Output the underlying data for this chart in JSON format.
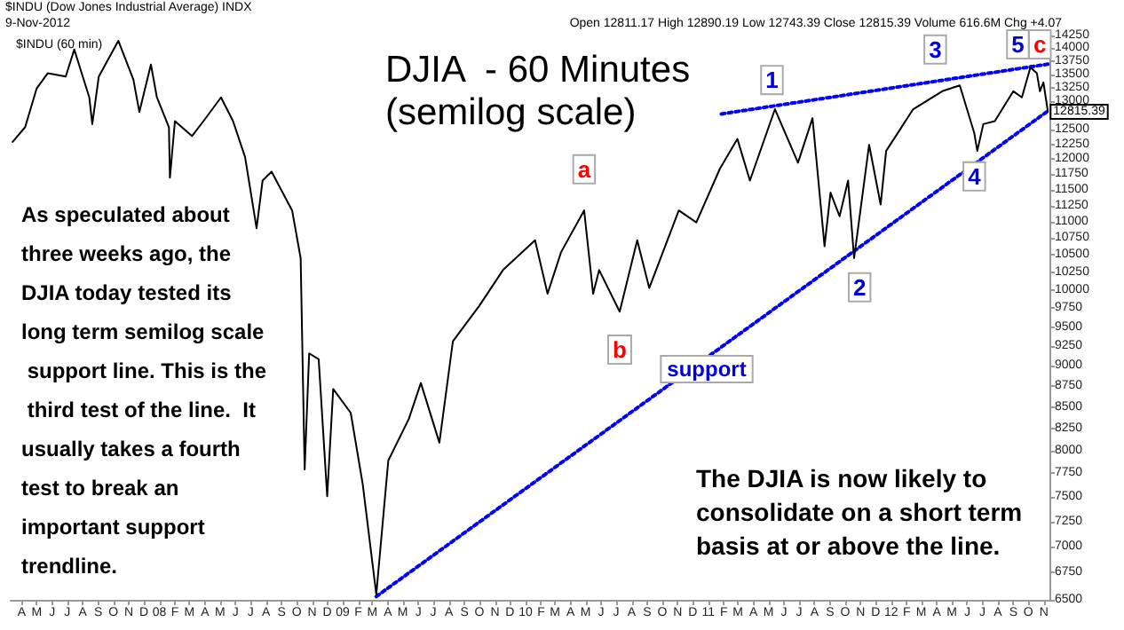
{
  "chart_data": {
    "type": "line",
    "title": "DJIA  - 60 Minutes",
    "subtitle": "(semilog scale)",
    "log": true,
    "annotations": [
      "$INDU (Dow Jones Industrial Average) INDX",
      "9-Nov-2012",
      "Open 12811.17 High 12890.19 Low 12743.39 Close 12815.39 Volume 616.6M Chg +4.07",
      "$INDU (60 min)",
      "As speculated about three weeks ago, the DJIA today tested its long term semilog scale support line. This is the third test of the line.  It usually takes a fourth test to break an important support trendline.",
      "The DJIA is now likely to consolidate on a short term basis at or above the line.",
      {
        "text": "a",
        "x": "2010-04-28",
        "y": 11830
      },
      {
        "text": "b",
        "x": "2010-07-08",
        "y": 9205
      },
      {
        "text": "1",
        "x": "2011-05-08",
        "y": 13395
      },
      {
        "text": "2",
        "x": "2011-10-30",
        "y": 10040
      },
      {
        "text": "3",
        "x": "2012-03-29",
        "y": 13975
      },
      {
        "text": "4",
        "x": "2012-06-15",
        "y": 11713
      },
      {
        "text": "5",
        "x": "2012-09-10",
        "y": 14075
      },
      {
        "text": "c",
        "x": "2012-10-24",
        "y": 14075
      },
      "support"
    ],
    "xlim": [
      "2007-03-10",
      "2012-11-12"
    ],
    "ylim": [
      6500,
      14250
    ],
    "xticks": [
      {
        "value": "2007-04",
        "label": "A"
      },
      {
        "value": "2007-05",
        "label": "M"
      },
      {
        "value": "2007-06",
        "label": "J"
      },
      {
        "value": "2007-07",
        "label": "J"
      },
      {
        "value": "2007-08",
        "label": "A"
      },
      {
        "value": "2007-09",
        "label": "S"
      },
      {
        "value": "2007-10",
        "label": "O"
      },
      {
        "value": "2007-11",
        "label": "N"
      },
      {
        "value": "2007-12",
        "label": "D"
      },
      {
        "value": "2008-01",
        "label": "08"
      },
      {
        "value": "2008-02",
        "label": "F"
      },
      {
        "value": "2008-03",
        "label": "M"
      },
      {
        "value": "2008-04",
        "label": "A"
      },
      {
        "value": "2008-05",
        "label": "M"
      },
      {
        "value": "2008-06",
        "label": "J"
      },
      {
        "value": "2008-07",
        "label": "J"
      },
      {
        "value": "2008-08",
        "label": "A"
      },
      {
        "value": "2008-09",
        "label": "S"
      },
      {
        "value": "2008-10",
        "label": "O"
      },
      {
        "value": "2008-11",
        "label": "N"
      },
      {
        "value": "2008-12",
        "label": "D"
      },
      {
        "value": "2009-01",
        "label": "09"
      },
      {
        "value": "2009-02",
        "label": "F"
      },
      {
        "value": "2009-03",
        "label": "M"
      },
      {
        "value": "2009-04",
        "label": "A"
      },
      {
        "value": "2009-05",
        "label": "M"
      },
      {
        "value": "2009-06",
        "label": "J"
      },
      {
        "value": "2009-07",
        "label": "J"
      },
      {
        "value": "2009-08",
        "label": "A"
      },
      {
        "value": "2009-09",
        "label": "S"
      },
      {
        "value": "2009-10",
        "label": "O"
      },
      {
        "value": "2009-11",
        "label": "N"
      },
      {
        "value": "2009-12",
        "label": "D"
      },
      {
        "value": "2010-01",
        "label": "10"
      },
      {
        "value": "2010-02",
        "label": "F"
      },
      {
        "value": "2010-03",
        "label": "M"
      },
      {
        "value": "2010-04",
        "label": "A"
      },
      {
        "value": "2010-05",
        "label": "M"
      },
      {
        "value": "2010-06",
        "label": "J"
      },
      {
        "value": "2010-07",
        "label": "J"
      },
      {
        "value": "2010-08",
        "label": "A"
      },
      {
        "value": "2010-09",
        "label": "S"
      },
      {
        "value": "2010-10",
        "label": "O"
      },
      {
        "value": "2010-11",
        "label": "N"
      },
      {
        "value": "2010-12",
        "label": "D"
      },
      {
        "value": "2011-01",
        "label": "11"
      },
      {
        "value": "2011-02",
        "label": "F"
      },
      {
        "value": "2011-03",
        "label": "M"
      },
      {
        "value": "2011-04",
        "label": "A"
      },
      {
        "value": "2011-05",
        "label": "M"
      },
      {
        "value": "2011-06",
        "label": "J"
      },
      {
        "value": "2011-07",
        "label": "J"
      },
      {
        "value": "2011-08",
        "label": "A"
      },
      {
        "value": "2011-09",
        "label": "S"
      },
      {
        "value": "2011-10",
        "label": "O"
      },
      {
        "value": "2011-11",
        "label": "N"
      },
      {
        "value": "2011-12",
        "label": "D"
      },
      {
        "value": "2012-01",
        "label": "12"
      },
      {
        "value": "2012-02",
        "label": "F"
      },
      {
        "value": "2012-03",
        "label": "M"
      },
      {
        "value": "2012-04",
        "label": "A"
      },
      {
        "value": "2012-05",
        "label": "M"
      },
      {
        "value": "2012-06",
        "label": "J"
      },
      {
        "value": "2012-07",
        "label": "J"
      },
      {
        "value": "2012-08",
        "label": "A"
      },
      {
        "value": "2012-09",
        "label": "S"
      },
      {
        "value": "2012-10",
        "label": "O"
      },
      {
        "value": "2012-11",
        "label": "N"
      }
    ],
    "yticks": [
      6500,
      6750,
      7000,
      7250,
      7500,
      7750,
      8000,
      8250,
      8500,
      8750,
      9000,
      9250,
      9500,
      9750,
      10000,
      10250,
      10500,
      10750,
      11000,
      11250,
      11500,
      11750,
      12000,
      12250,
      12500,
      {
        "value": 12750,
        "label": null
      },
      13000,
      13250,
      13500,
      13750,
      14000,
      14250
    ],
    "series": [
      {
        "color": "#000000",
        "x": [
          "2007-03-14",
          "2007-04-08",
          "2007-05-01",
          "2007-05-23",
          "2007-06-28",
          "2007-07-15",
          "2007-08-14",
          "2007-08-20",
          "2007-09-02",
          "2007-10-11",
          "2007-11-10",
          "2007-11-22",
          "2007-12-15",
          "2007-12-27",
          "2008-01-20",
          "2008-01-22",
          "2008-02-01",
          "2008-03-06",
          "2008-03-29",
          "2008-05-03",
          "2008-05-27",
          "2008-06-20",
          "2008-07-13",
          "2008-07-25",
          "2008-08-12",
          "2008-09-22",
          "2008-10-09",
          "2008-10-17",
          "2008-10-26",
          "2008-11-14",
          "2008-12-01",
          "2008-12-13",
          "2009-01-17",
          "2009-02-10",
          "2009-03-09",
          "2009-04-02",
          "2009-05-13",
          "2009-06-06",
          "2009-07-13",
          "2009-08-09",
          "2009-10-01",
          "2009-11-17",
          "2010-01-20",
          "2010-02-14",
          "2010-03-13",
          "2010-04-28",
          "2010-05-16",
          "2010-05-28",
          "2010-07-08",
          "2010-08-12",
          "2010-09-05",
          "2010-11-03",
          "2010-12-08",
          "2011-01-24",
          "2011-02-28",
          "2011-03-25",
          "2011-05-14",
          "2011-06-29",
          "2011-07-28",
          "2011-08-21",
          "2011-09-02",
          "2011-09-20",
          "2011-10-07",
          "2011-10-19",
          "2011-11-18",
          "2011-12-11",
          "2011-12-22",
          "2012-02-14",
          "2012-04-12",
          "2012-05-17",
          "2012-06-15",
          "2012-06-21",
          "2012-07-03",
          "2012-07-26",
          "2012-09-01",
          "2012-09-18",
          "2012-10-05",
          "2012-10-18",
          "2012-10-24",
          "2012-10-31",
          "2012-11-09"
        ],
        "values": [
          12290,
          12545,
          13240,
          13520,
          13460,
          13975,
          13075,
          12597,
          13460,
          14146,
          13405,
          12810,
          13687,
          13075,
          12545,
          11693,
          12650,
          12390,
          12650,
          13075,
          12650,
          12036,
          10900,
          11646,
          11790,
          11172,
          10454,
          7793,
          9158,
          9084,
          7507,
          8715,
          8431,
          7633,
          6550,
          7890,
          8360,
          8788,
          8088,
          9314,
          9787,
          10283,
          10718,
          9950,
          10543,
          11172,
          9950,
          10283,
          9705,
          10718,
          10030,
          11172,
          10987,
          11838,
          12340,
          11646,
          12862,
          11939,
          12702,
          10630,
          11453,
          11082,
          11646,
          10454,
          12240,
          11264,
          12136,
          12862,
          13187,
          13294,
          12440,
          12136,
          12597,
          12650,
          13187,
          13075,
          13630,
          13520,
          13187,
          13350,
          12815.39
        ],
        "value_labels": [
          null,
          null,
          null,
          null,
          null,
          null,
          null,
          null,
          null,
          null,
          null,
          null,
          null,
          null,
          null,
          null,
          null,
          null,
          null,
          null,
          null,
          null,
          null,
          null,
          null,
          null,
          null,
          null,
          null,
          null,
          null,
          null,
          null,
          null,
          null,
          null,
          null,
          null,
          null,
          null,
          null,
          null,
          null,
          null,
          null,
          null,
          null,
          null,
          null,
          null,
          null,
          null,
          null,
          null,
          null,
          null,
          null,
          null,
          null,
          null,
          null,
          null,
          null,
          null,
          null,
          null,
          null,
          null,
          null,
          null,
          null,
          null,
          null,
          null,
          null,
          null,
          null,
          null,
          null,
          null,
          "12815.39"
        ]
      },
      {
        "color": "#0000ff",
        "line_style": "dotted",
        "x": [
          "2009-03-09",
          "2012-11-09"
        ],
        "values": [
          6530,
          12830
        ]
      },
      {
        "color": "#0000ff",
        "line_style": "dotted",
        "x": [
          "2011-01-27",
          "2012-11-09"
        ],
        "values": [
          12777,
          13693
        ]
      }
    ]
  }
}
